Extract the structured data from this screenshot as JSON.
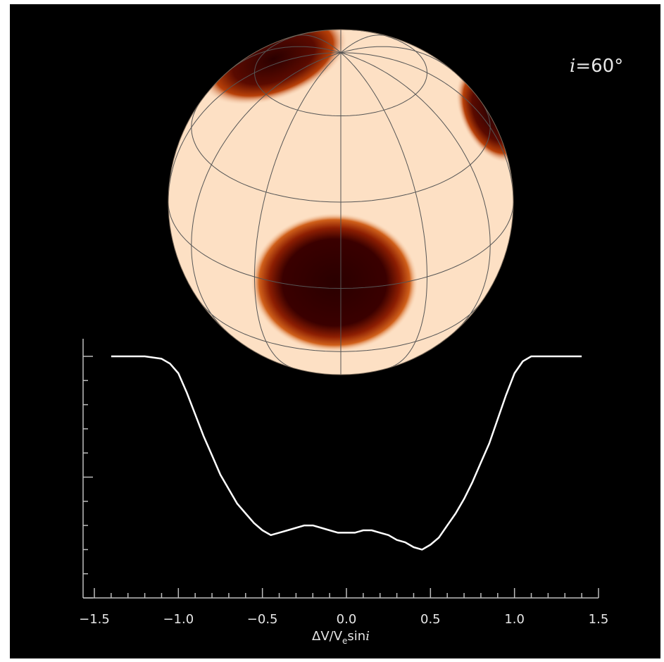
{
  "chart_data": {
    "type": "line",
    "title": "",
    "annotation": {
      "symbol": "i",
      "text": "=60°"
    },
    "inclination_deg": 60,
    "xlabel": {
      "prefix": "ΔV/V",
      "subscript": "e",
      "suffix": "sin",
      "italic": "i"
    },
    "ylabel": "",
    "xlim": [
      -1.5,
      1.5
    ],
    "ylim": [
      0.0,
      1.1
    ],
    "xticks": [
      -1.5,
      -1.0,
      -0.5,
      0.0,
      0.5,
      1.0,
      1.5
    ],
    "xtick_labels": [
      "−1.5",
      "−1.0",
      "−0.5",
      "0.0",
      "0.5",
      "1.0",
      "1.5"
    ],
    "grid": false,
    "legend": "none",
    "series": [
      {
        "x": [
          -1.4,
          -1.2,
          -1.1,
          -1.05,
          -1.0,
          -0.95,
          -0.9,
          -0.85,
          -0.8,
          -0.75,
          -0.7,
          -0.65,
          -0.6,
          -0.55,
          -0.5,
          -0.45,
          -0.4,
          -0.35,
          -0.3,
          -0.25,
          -0.2,
          -0.15,
          -0.1,
          -0.05,
          0.0,
          0.05,
          0.1,
          0.15,
          0.2,
          0.25,
          0.3,
          0.35,
          0.4,
          0.45,
          0.5,
          0.55,
          0.6,
          0.65,
          0.7,
          0.75,
          0.8,
          0.85,
          0.9,
          0.95,
          1.0,
          1.05,
          1.1,
          1.2,
          1.4
        ],
        "y": [
          1.0,
          1.0,
          0.99,
          0.97,
          0.93,
          0.85,
          0.76,
          0.67,
          0.59,
          0.51,
          0.45,
          0.39,
          0.35,
          0.31,
          0.28,
          0.26,
          0.27,
          0.28,
          0.29,
          0.3,
          0.3,
          0.29,
          0.28,
          0.27,
          0.27,
          0.27,
          0.28,
          0.28,
          0.27,
          0.26,
          0.24,
          0.23,
          0.21,
          0.2,
          0.22,
          0.25,
          0.3,
          0.35,
          0.41,
          0.48,
          0.56,
          0.64,
          0.74,
          0.84,
          0.93,
          0.98,
          1.0,
          1.0,
          1.0
        ]
      }
    ],
    "star": {
      "photosphere_color": "#fde0c4",
      "spot_color": "#3a0000",
      "penumbra_color": "#b03a08",
      "grid_line_color": "#555555"
    },
    "colors": {
      "background": "#000000",
      "line": "#ffffff",
      "axis": "#bdbdbd"
    }
  }
}
